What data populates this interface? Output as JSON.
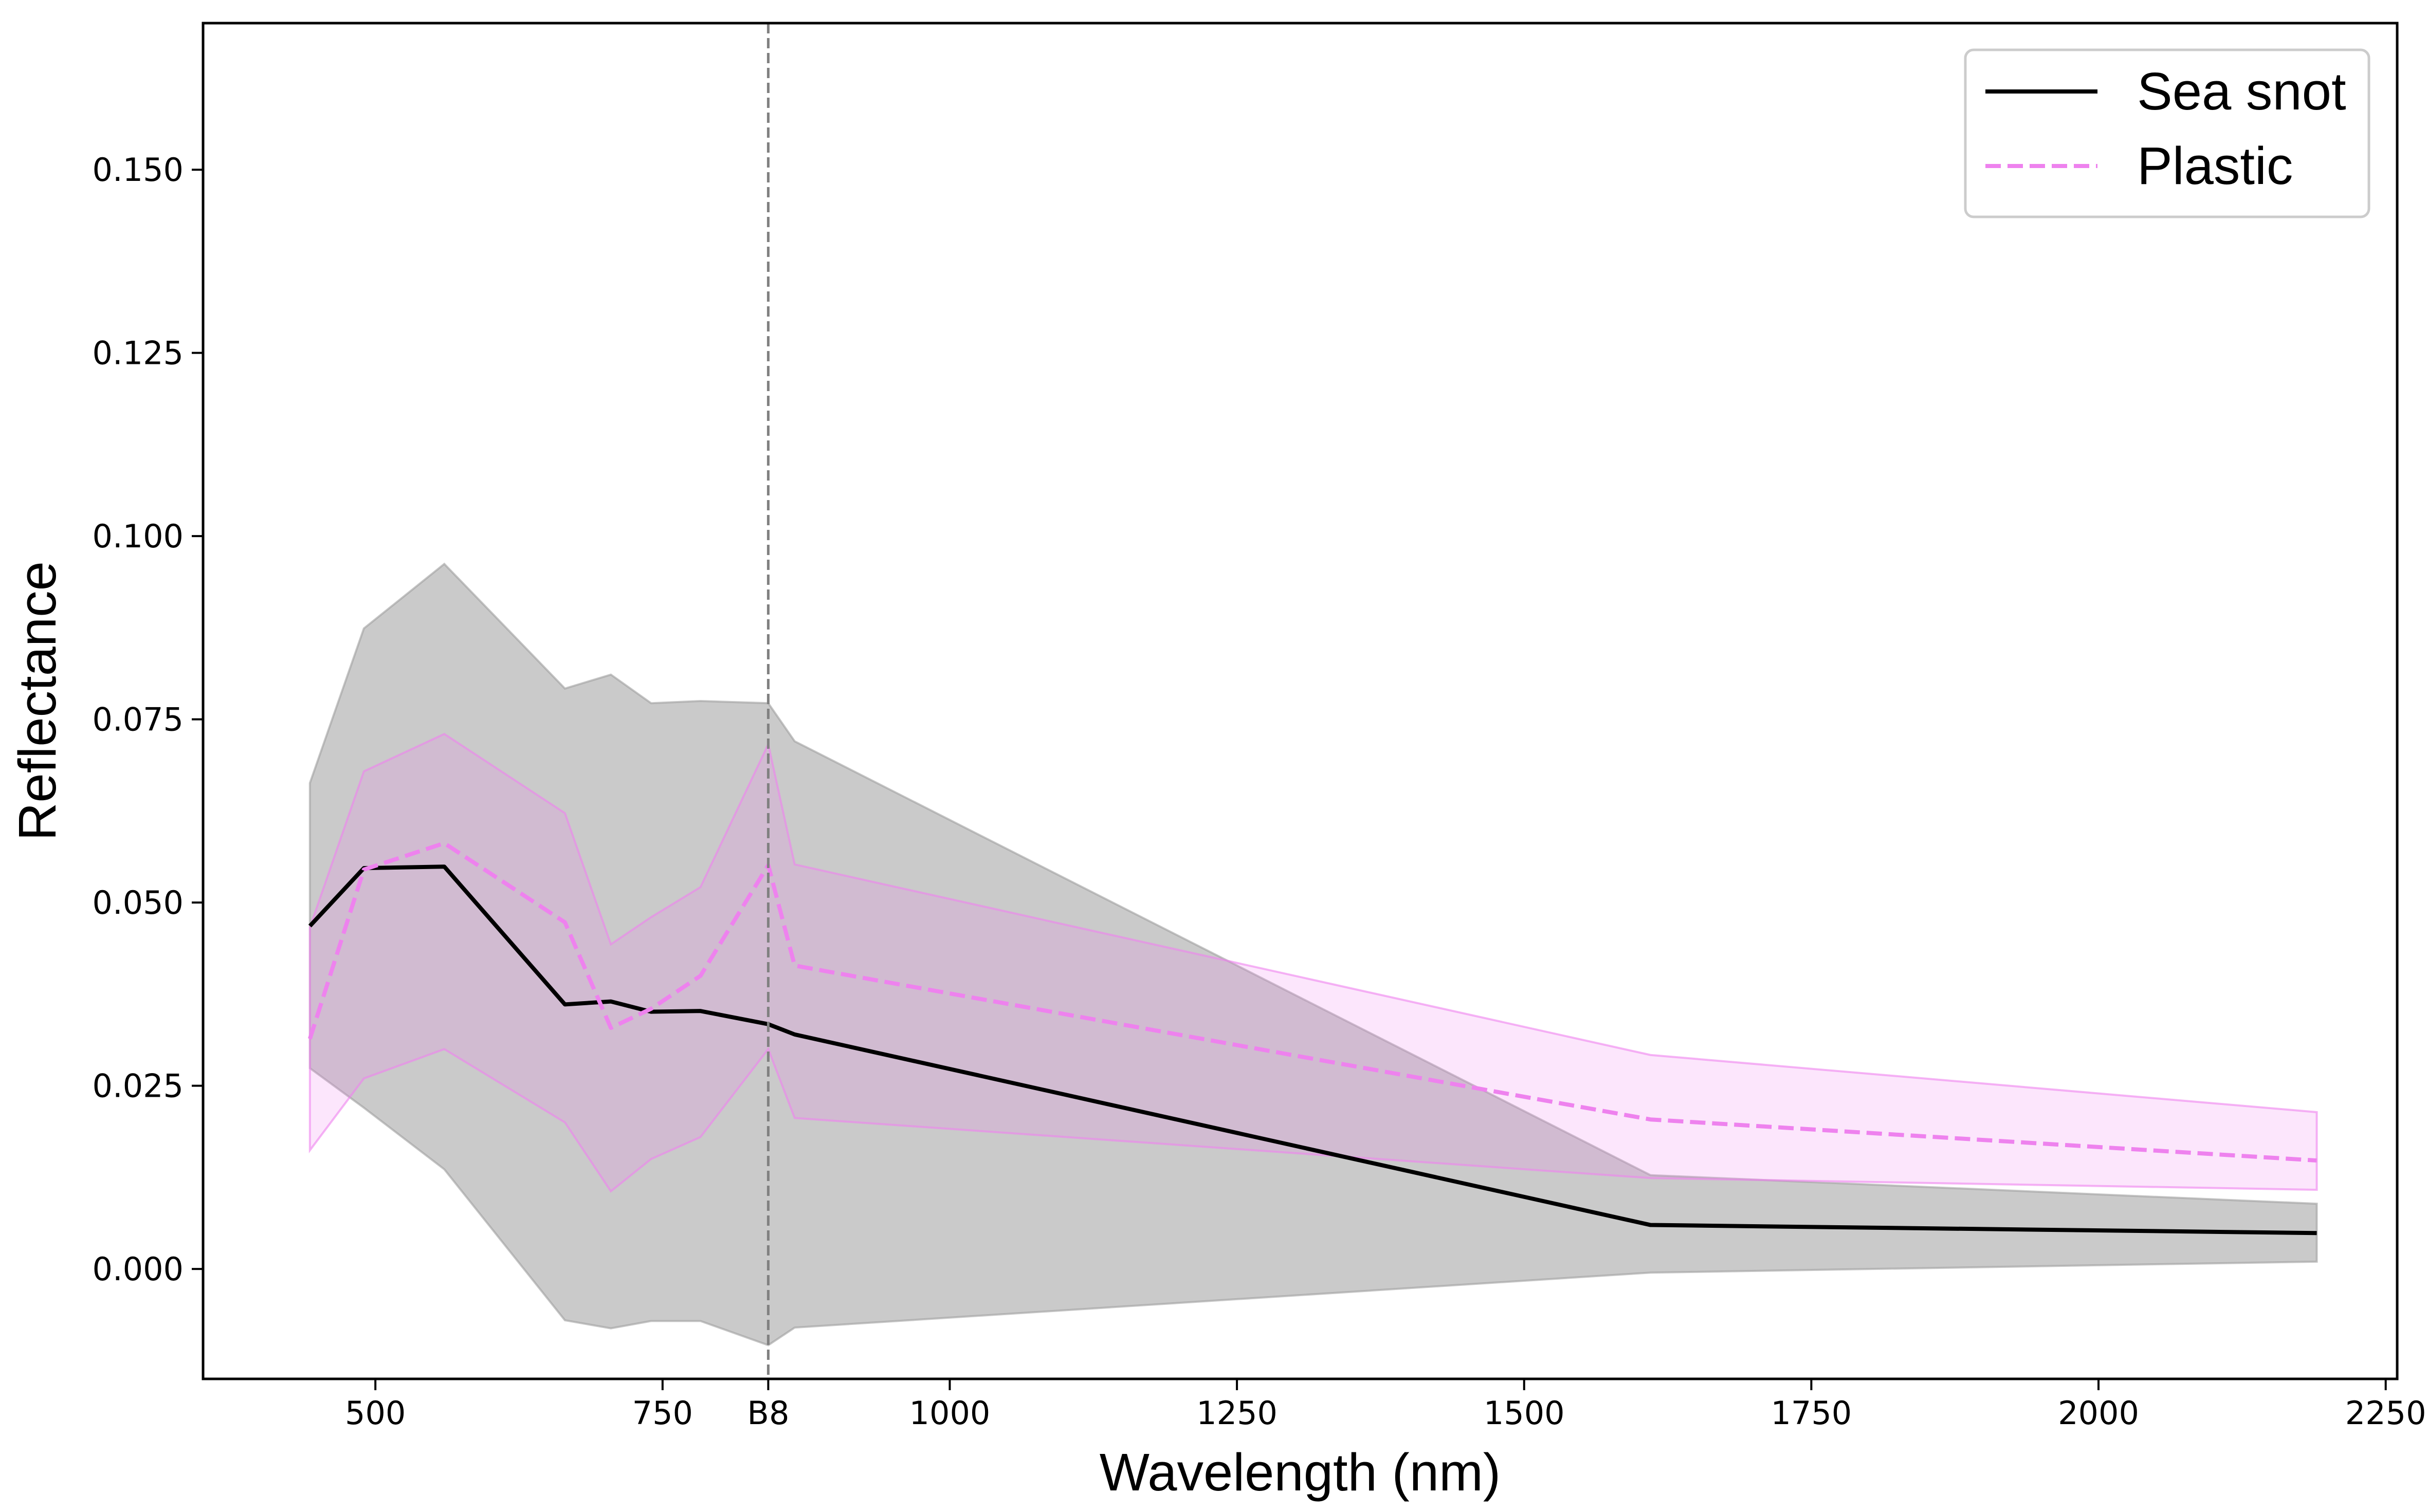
{
  "chart_data": {
    "type": "line",
    "title": "",
    "xlabel": "Wavelength (nm)",
    "ylabel": "Reflectance",
    "xlim": [
      350,
      2260
    ],
    "ylim": [
      -0.015,
      0.17
    ],
    "grid": false,
    "legend_position": "top-right",
    "x_ticks": [
      {
        "value": 500,
        "label": "500"
      },
      {
        "value": 750,
        "label": "750"
      },
      {
        "value": 842,
        "label": "B8"
      },
      {
        "value": 1000,
        "label": "1000"
      },
      {
        "value": 1250,
        "label": "1250"
      },
      {
        "value": 1500,
        "label": "1500"
      },
      {
        "value": 1750,
        "label": "1750"
      },
      {
        "value": 2000,
        "label": "2000"
      },
      {
        "value": 2250,
        "label": "2250"
      }
    ],
    "y_ticks": [
      {
        "value": 0.0,
        "label": "0.000"
      },
      {
        "value": 0.025,
        "label": "0.025"
      },
      {
        "value": 0.05,
        "label": "0.050"
      },
      {
        "value": 0.075,
        "label": "0.075"
      },
      {
        "value": 0.1,
        "label": "0.100"
      },
      {
        "value": 0.125,
        "label": "0.125"
      },
      {
        "value": 0.15,
        "label": "0.150"
      }
    ],
    "vline": {
      "x": 842,
      "color": "#808080",
      "style": "dashed"
    },
    "x": [
      443,
      490,
      560,
      665,
      705,
      740,
      783,
      842,
      865,
      1610,
      2190
    ],
    "series": [
      {
        "name": "Sea snot",
        "color": "#000000",
        "band_color": "#9e9e9e",
        "style": "solid",
        "mean": [
          0.0468,
          0.0547,
          0.0549,
          0.0361,
          0.0365,
          0.0351,
          0.0352,
          0.0334,
          0.032,
          0.006,
          0.0049
        ],
        "upper": [
          0.0663,
          0.0874,
          0.0962,
          0.0792,
          0.0811,
          0.0772,
          0.0775,
          0.0772,
          0.072,
          0.0128,
          0.0089
        ],
        "lower": [
          0.0274,
          0.022,
          0.0136,
          -0.007,
          -0.0081,
          -0.0071,
          -0.0071,
          -0.0104,
          -0.008,
          -0.0005,
          0.001
        ]
      },
      {
        "name": "Plastic",
        "color": "#ee82ee",
        "band_color": "#ee82ee",
        "style": "dashed",
        "mean": [
          0.0314,
          0.0545,
          0.0581,
          0.0473,
          0.0329,
          0.0355,
          0.04,
          0.0551,
          0.0414,
          0.0204,
          0.0148
        ],
        "upper": [
          0.0466,
          0.0679,
          0.073,
          0.0622,
          0.0443,
          0.048,
          0.0521,
          0.0716,
          0.0552,
          0.0292,
          0.0214
        ],
        "lower": [
          0.0162,
          0.026,
          0.03,
          0.02,
          0.0106,
          0.015,
          0.018,
          0.03,
          0.0206,
          0.0124,
          0.0108
        ]
      }
    ]
  }
}
